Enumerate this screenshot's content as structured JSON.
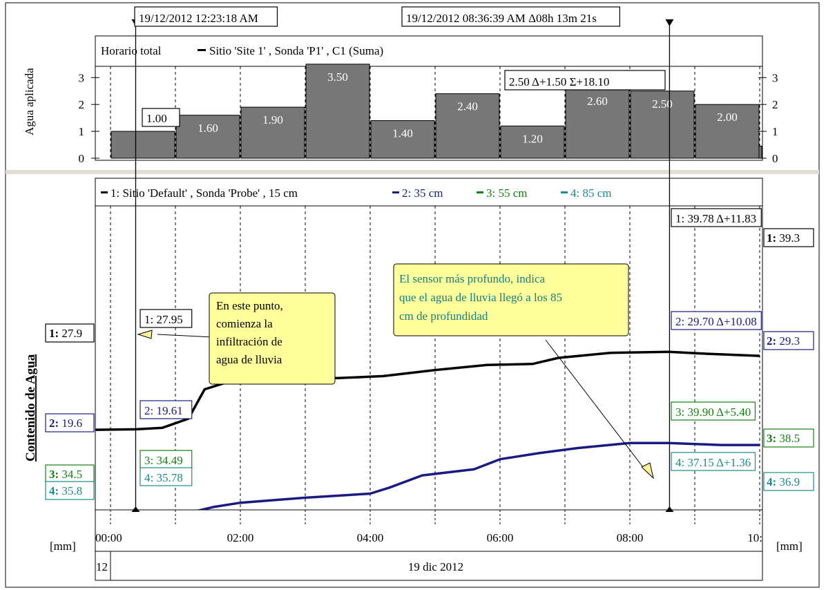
{
  "cursors": {
    "left_label": "19/12/2012 12:23:18 AM",
    "right_label": "19/12/2012 08:36:39 AM Δ08h 13m 21s",
    "left_time": 0.388,
    "right_time": 8.611
  },
  "top_panel": {
    "ylabel": "Agua aplicada",
    "legend_prefix": "Horario total",
    "legend_series": "Sitio  'Site 1' , Sonda 'P1' , C1 (Suma)",
    "ylim": [
      0,
      3.5
    ],
    "yticks": [
      "0",
      "1",
      "2",
      "3"
    ],
    "cursor_readout": "2.50  Δ+1.50  Σ+18.10",
    "left_readout": "1.00",
    "bars": [
      {
        "start": 0,
        "end": 1,
        "value": 1.0,
        "label": "1.00"
      },
      {
        "start": 1,
        "end": 2,
        "value": 1.6,
        "label": "1.60"
      },
      {
        "start": 2,
        "end": 3,
        "value": 1.9,
        "label": "1.90"
      },
      {
        "start": 3,
        "end": 4,
        "value": 3.5,
        "label": "3.50"
      },
      {
        "start": 4,
        "end": 5,
        "value": 1.4,
        "label": "1.40"
      },
      {
        "start": 5,
        "end": 6,
        "value": 2.4,
        "label": "2.40"
      },
      {
        "start": 6,
        "end": 7,
        "value": 1.2,
        "label": "1.20"
      },
      {
        "start": 7,
        "end": 8,
        "value": 2.6,
        "label": "2.60"
      },
      {
        "start": 8,
        "end": 9,
        "value": 2.5,
        "label": "2.50"
      },
      {
        "start": 9,
        "end": 10,
        "value": 2.0,
        "label": "2.00"
      }
    ]
  },
  "bottom_panel": {
    "ylabel": "Contenido de Agua",
    "unit_left": "[mm]",
    "unit_right": "[mm]",
    "legend": [
      {
        "text": "1: Sitio  'Default' , Sonda 'Probe' , 15 cm",
        "color": "#000000"
      },
      {
        "text": "2: 35 cm",
        "color": "#1a1a80"
      },
      {
        "text": "3: 55 cm",
        "color": "#128012"
      },
      {
        "text": "4: 85 cm",
        "color": "#1a8a8a"
      }
    ],
    "series": [
      {
        "id": "1",
        "color": "#000000",
        "left_label": "27.9",
        "right_label": "39.3",
        "cursor_left": "1: 27.95",
        "cursor_right": "1: 39.78  Δ+11.83"
      },
      {
        "id": "2",
        "color": "#1a1a80",
        "left_label": "19.6",
        "right_label": "29.3",
        "cursor_left": "2: 19.61",
        "cursor_right": "2: 29.70  Δ+10.08"
      },
      {
        "id": "3",
        "color": "#128012",
        "left_label": "34.5",
        "right_label": "38.5",
        "cursor_left": "3: 34.49",
        "cursor_right": "3: 39.90  Δ+5.40"
      },
      {
        "id": "4",
        "color": "#1a8a8a",
        "left_label": "35.8",
        "right_label": "36.9",
        "cursor_left": "4: 35.78",
        "cursor_right": "4: 37.15  Δ+1.36"
      }
    ],
    "annotations": [
      {
        "lines": [
          "En este punto,",
          "comienza la",
          "infiltración de",
          "agua de lluvia"
        ]
      },
      {
        "lines": [
          "El sensor más profundo, indica",
          "que el agua de lluvia llegó a los 85",
          "cm de profundidad"
        ]
      }
    ]
  },
  "x_axis": {
    "ticks": [
      {
        "t": 0,
        "label": "00:00"
      },
      {
        "t": 2,
        "label": "02:00"
      },
      {
        "t": 4,
        "label": "04:00"
      },
      {
        "t": 6,
        "label": "06:00"
      },
      {
        "t": 8,
        "label": "08:00"
      },
      {
        "t": 10,
        "label": "10:"
      }
    ],
    "date_left": "12",
    "date_center": "19 dic 2012"
  }
}
